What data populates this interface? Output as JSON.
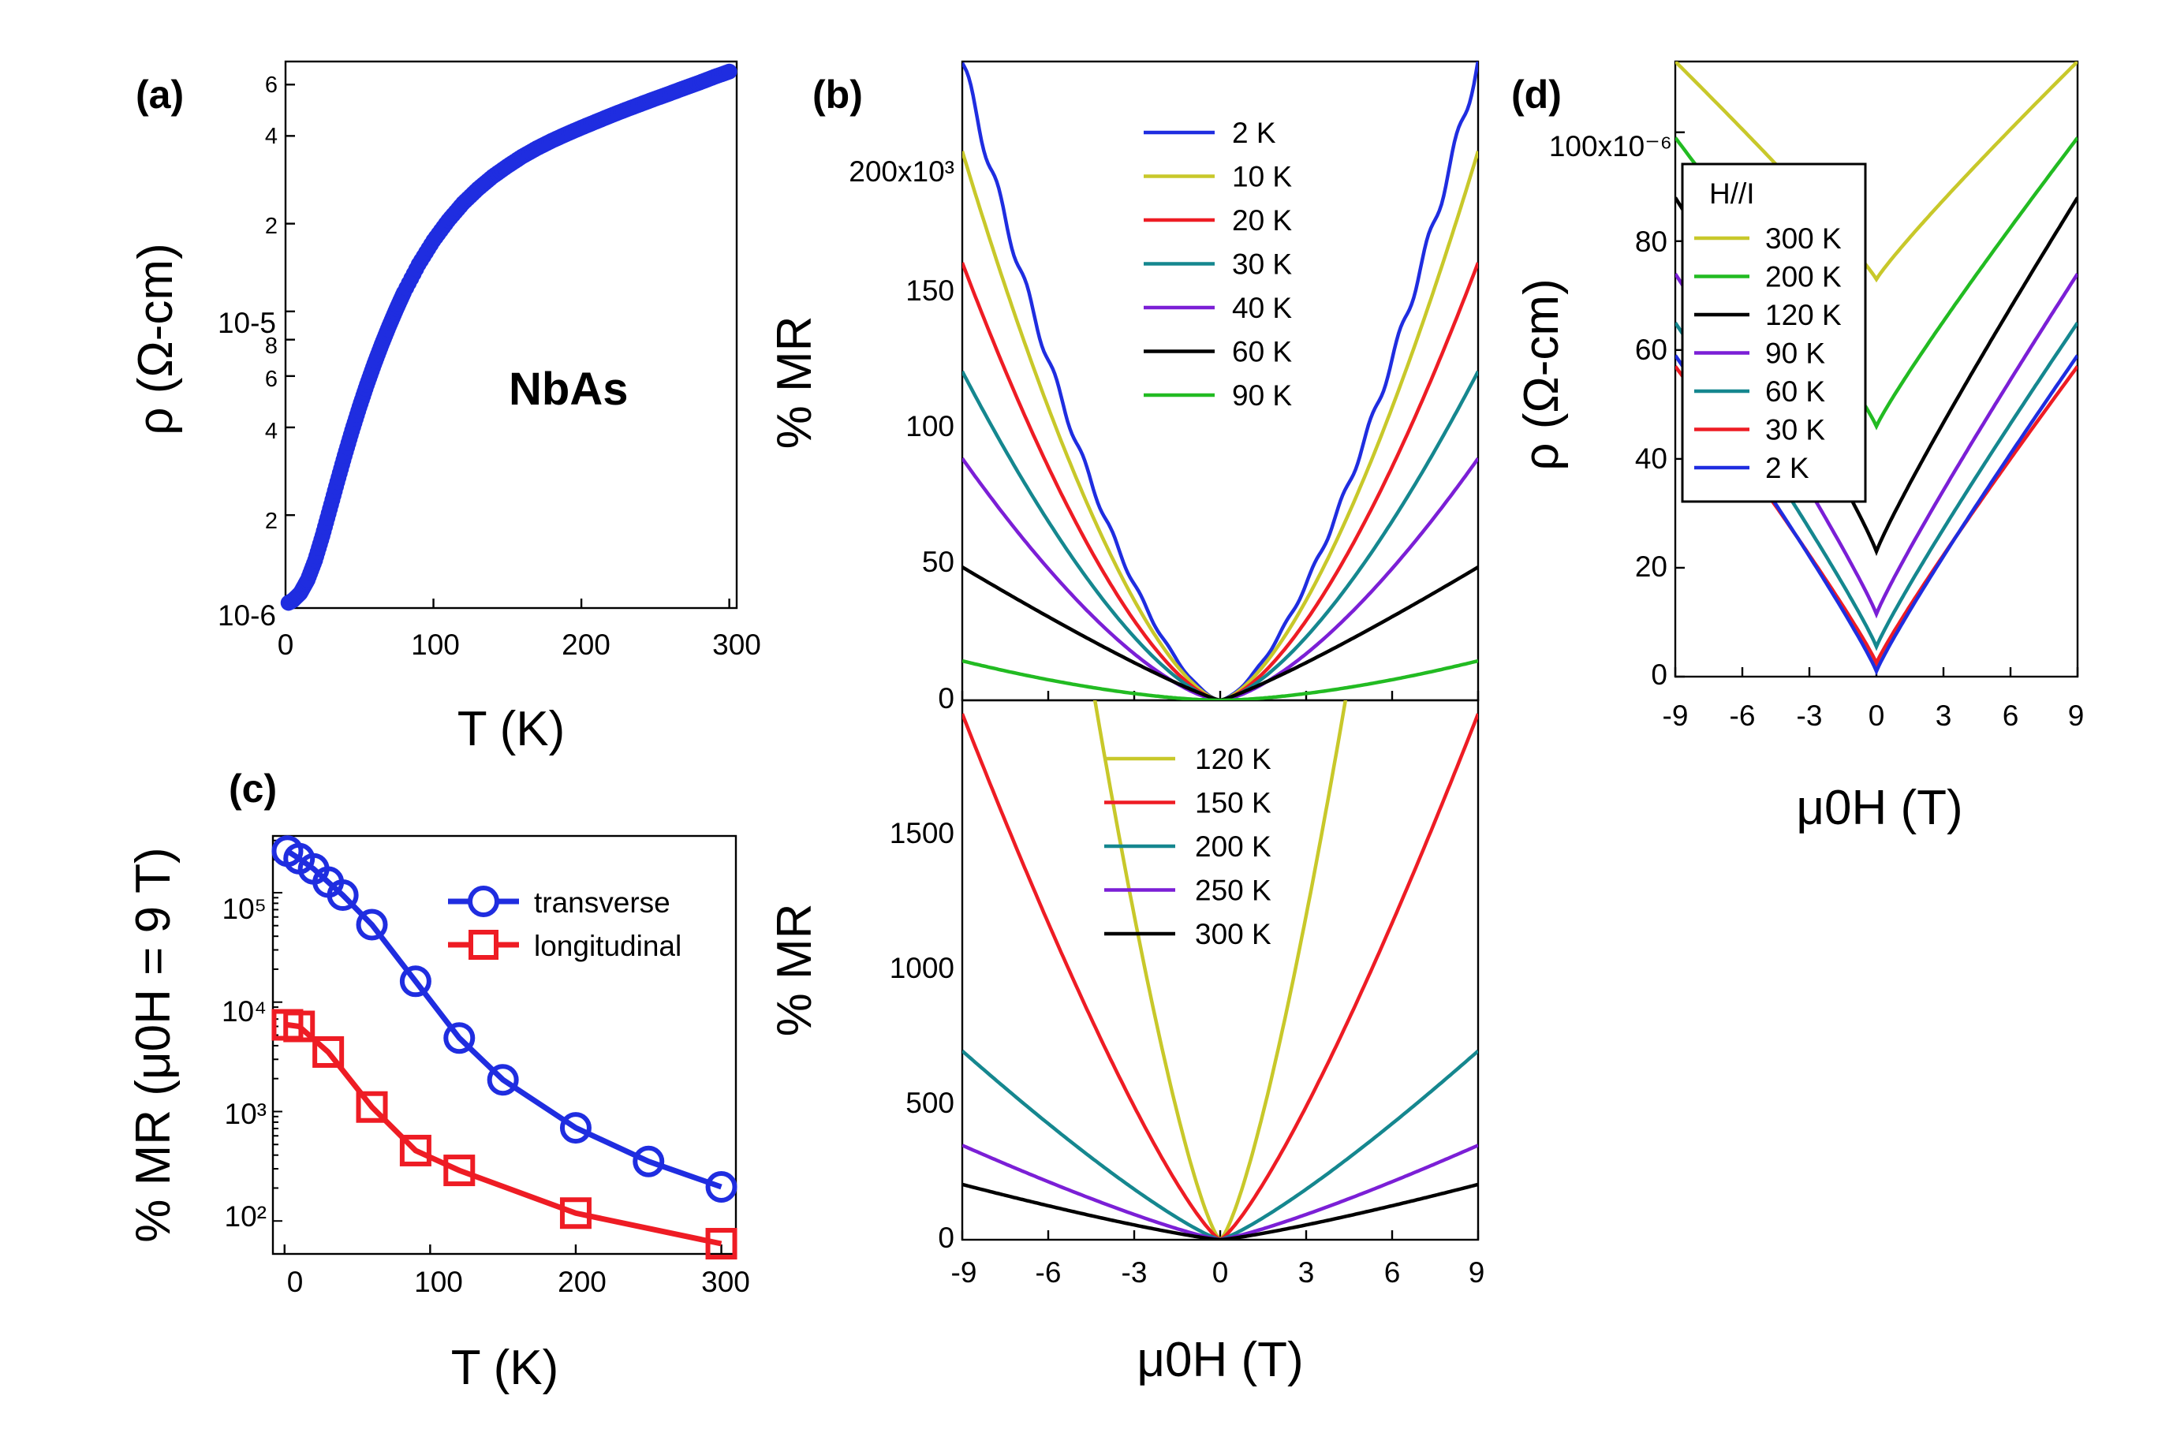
{
  "chart_data": [
    {
      "panel": "(a)",
      "type": "scatter",
      "annotation": "NbAs",
      "xlabel": "T (K)",
      "ylabel": "ρ (Ω-cm)",
      "x_ticks": [
        "0",
        "100",
        "200",
        "300"
      ],
      "y_ticks": [
        "10-6",
        "2",
        "4",
        "10-5",
        "6",
        "8",
        "2",
        "4",
        "6"
      ],
      "xlim": [
        0,
        305
      ],
      "ylim": [
        9.6e-07,
        7.2e-05
      ],
      "yscale": "log",
      "x": [
        2,
        5,
        10,
        15,
        20,
        25,
        30,
        35,
        40,
        45,
        50,
        55,
        60,
        65,
        70,
        75,
        80,
        90,
        100,
        110,
        120,
        130,
        140,
        150,
        160,
        170,
        180,
        190,
        200,
        210,
        220,
        230,
        240,
        250,
        260,
        270,
        280,
        290,
        300
      ],
      "y": [
        1e-06,
        1.02e-06,
        1.08e-06,
        1.2e-06,
        1.4e-06,
        1.7e-06,
        2.1e-06,
        2.6e-06,
        3.2e-06,
        3.9e-06,
        4.7e-06,
        5.6e-06,
        6.6e-06,
        7.7e-06,
        8.9e-06,
        1.02e-05,
        1.16e-05,
        1.45e-05,
        1.75e-05,
        2.05e-05,
        2.35e-05,
        2.63e-05,
        2.9e-05,
        3.15e-05,
        3.4e-05,
        3.63e-05,
        3.85e-05,
        4.06e-05,
        4.27e-05,
        4.48e-05,
        4.7e-05,
        4.92e-05,
        5.14e-05,
        5.37e-05,
        5.6e-05,
        5.85e-05,
        6.1e-05,
        6.38e-05,
        6.65e-05
      ],
      "color": "#1f2de0"
    },
    {
      "panel": "(b)",
      "type": "line",
      "xlabel": "μ0H (T)",
      "ylabel_top": "% MR",
      "ylabel_bottom": "% MR",
      "x_ticks": [
        "-9",
        "-6",
        "-3",
        "0",
        "3",
        "6",
        "9"
      ],
      "top": {
        "ylim": [
          0,
          235000
        ],
        "y_ticks": [
          "0",
          "50",
          "100",
          "150",
          "200x10³"
        ],
        "series": [
          {
            "name": "2 K",
            "color": "#1f2de0",
            "mr9": 235000,
            "exp": 1.55
          },
          {
            "name": "10 K",
            "color": "#c8c82a",
            "mr9": 202000,
            "exp": 1.55
          },
          {
            "name": "20 K",
            "color": "#ee1c24",
            "mr9": 161000,
            "exp": 1.55
          },
          {
            "name": "30 K",
            "color": "#15878f",
            "mr9": 121000,
            "exp": 1.5
          },
          {
            "name": "40 K",
            "color": "#7b1fd6",
            "mr9": 89000,
            "exp": 1.5
          },
          {
            "name": "60 K",
            "color": "#000000",
            "mr9": 49000,
            "exp": 1.15
          },
          {
            "name": "90 K",
            "color": "#22bb22",
            "mr9": 14500,
            "exp": 1.6
          }
        ]
      },
      "bottom": {
        "ylim": [
          0,
          2000
        ],
        "y_ticks": [
          "0",
          "500",
          "1000",
          "1500"
        ],
        "series": [
          {
            "name": "120 K",
            "color": "#c8c82a",
            "mr9": 5300,
            "exp": 1.35
          },
          {
            "name": "150 K",
            "color": "#ee1c24",
            "mr9": 1950,
            "exp": 1.25
          },
          {
            "name": "200 K",
            "color": "#15878f",
            "mr9": 700,
            "exp": 1.2
          },
          {
            "name": "250 K",
            "color": "#7b1fd6",
            "mr9": 350,
            "exp": 1.2
          },
          {
            "name": "300 K",
            "color": "#000000",
            "mr9": 205,
            "exp": 1.2
          }
        ]
      }
    },
    {
      "panel": "(c)",
      "type": "line",
      "xlabel": "T (K)",
      "ylabel": "% MR (μ0H = 9 T)",
      "x_ticks": [
        "0",
        "100",
        "200",
        "300"
      ],
      "y_ticks": [
        "10²",
        "10³",
        "10⁴",
        "10⁵"
      ],
      "xlim": [
        -8,
        310
      ],
      "ylim": [
        50,
        330000
      ],
      "yscale": "log",
      "series": [
        {
          "name": "transverse",
          "color": "#1f2de0",
          "marker": "circle",
          "x": [
            2,
            10,
            20,
            30,
            40,
            60,
            90,
            120,
            150,
            200,
            250,
            300
          ],
          "y": [
            240000,
            205000,
            165000,
            125000,
            95000,
            51000,
            15500,
            4700,
            1950,
            710,
            350,
            205
          ]
        },
        {
          "name": "longitudinal",
          "color": "#ee1c24",
          "marker": "square",
          "x": [
            2,
            10,
            30,
            60,
            90,
            120,
            200,
            300
          ],
          "y": [
            6200,
            6000,
            3500,
            1100,
            440,
            290,
            118,
            62
          ]
        }
      ]
    },
    {
      "panel": "(d)",
      "type": "line",
      "legend_title": "H//I",
      "xlabel": "μ0H (T)",
      "ylabel": "ρ (Ω-cm)",
      "x_ticks": [
        "-9",
        "-6",
        "-3",
        "0",
        "3",
        "6",
        "9"
      ],
      "y_ticks": [
        "0",
        "20",
        "40",
        "60",
        "80",
        "100x10⁻⁶"
      ],
      "xlim": [
        -9,
        9
      ],
      "ylim": [
        0,
        113
      ],
      "series": [
        {
          "name": "300 K",
          "color": "#c8c82a",
          "y0": 73,
          "y9": 113
        },
        {
          "name": "200 K",
          "color": "#22bb22",
          "y0": 46,
          "y9": 99
        },
        {
          "name": "120 K",
          "color": "#000000",
          "y0": 23,
          "y9": 88
        },
        {
          "name": "90 K",
          "color": "#7b1fd6",
          "y0": 11.5,
          "y9": 74
        },
        {
          "name": "60 K",
          "color": "#15878f",
          "y0": 5.5,
          "y9": 65
        },
        {
          "name": "30 K",
          "color": "#ee1c24",
          "y0": 2.5,
          "y9": 57
        },
        {
          "name": "2 K",
          "color": "#1f2de0",
          "y0": 1,
          "y9": 59
        }
      ]
    }
  ]
}
